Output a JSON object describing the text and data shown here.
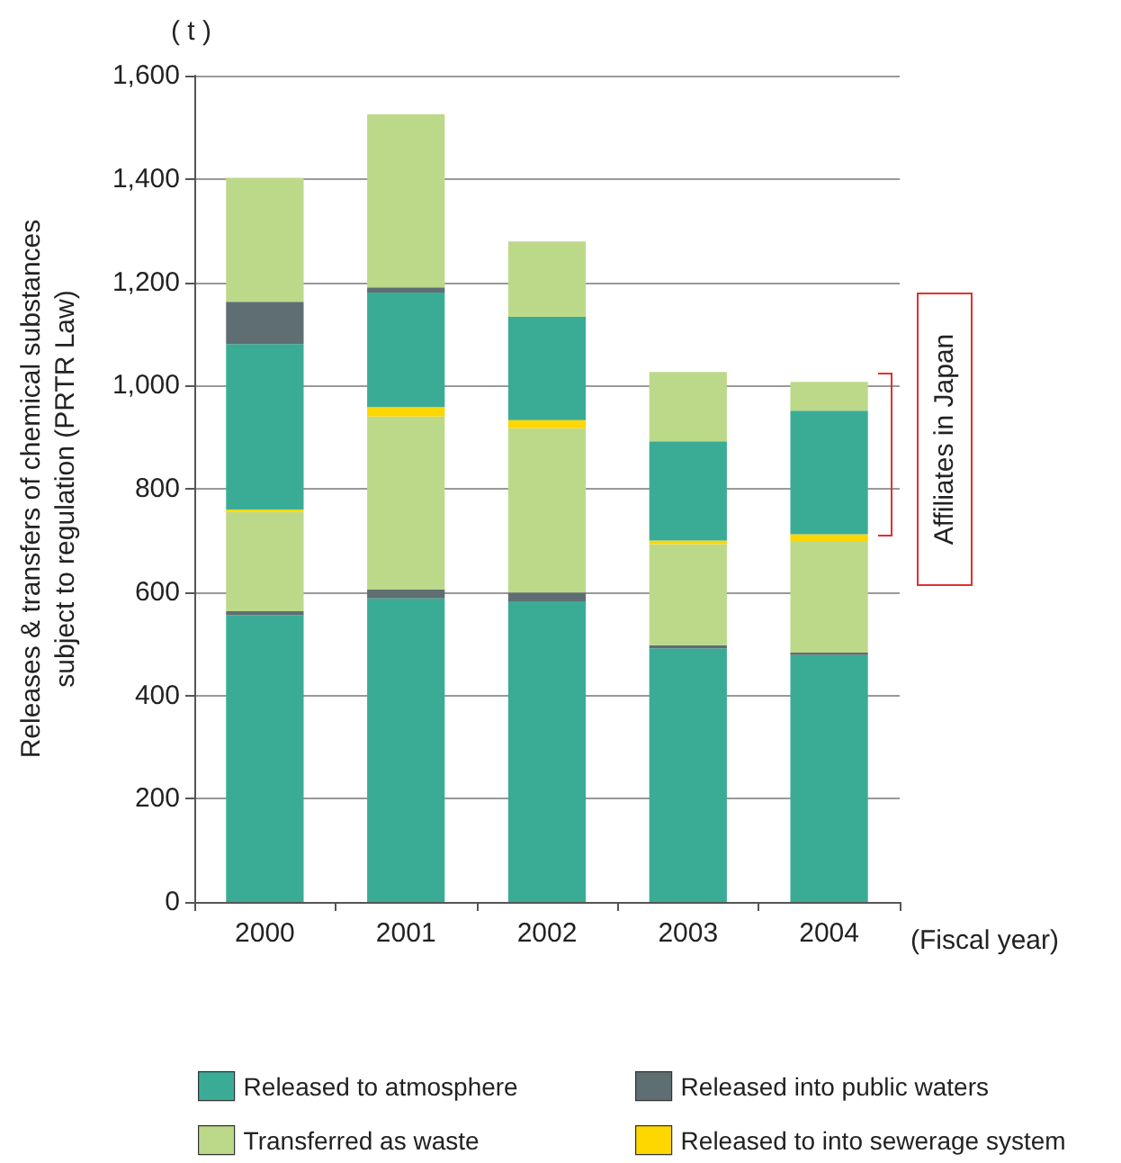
{
  "chart_data": {
    "type": "bar",
    "stacked": true,
    "xlabel": "(Fiscal year)",
    "ylabel": "Releases & transfers of chemical substances\nsubject to regulation (PRTR Law)",
    "annotations": [
      "( t )",
      "Affiliates in Japan"
    ],
    "categories": [
      "2000",
      "2001",
      "2002",
      "2003",
      "2004"
    ],
    "ylim": [
      0,
      1600
    ],
    "yticks": [
      0,
      200,
      400,
      600,
      800,
      {
        "value": 1000,
        "label": "1,000"
      },
      {
        "value": 1200,
        "label": "1,200"
      },
      {
        "value": 1400,
        "label": "1,400"
      },
      {
        "value": 1600,
        "label": "1,600"
      }
    ],
    "grid": "y",
    "legend": "bottom",
    "series": [
      {
        "name": "Released to atmosphere",
        "color": "#3aac96",
        "values": [
          555,
          588,
          582,
          491,
          478
        ]
      },
      {
        "name": "Released into public waters",
        "color": "#5f6e72",
        "values": [
          8,
          17,
          17,
          6,
          5
        ]
      },
      {
        "name": "Transferred as waste",
        "color": "#bcd98a",
        "values": [
          192,
          335,
          318,
          196,
          214
        ]
      },
      {
        "name": "Released to into sewerage system",
        "color": "#ffd700",
        "values": [
          5,
          18,
          16,
          7,
          15
        ]
      },
      {
        "color": "#3aac96",
        "values": [
          320,
          222,
          200,
          192,
          239
        ]
      },
      {
        "color": "#5f6e72",
        "values": [
          82,
          10,
          null,
          null,
          null
        ]
      },
      {
        "color": "#bcd98a",
        "values": [
          240,
          335,
          146,
          134,
          56
        ]
      }
    ]
  }
}
